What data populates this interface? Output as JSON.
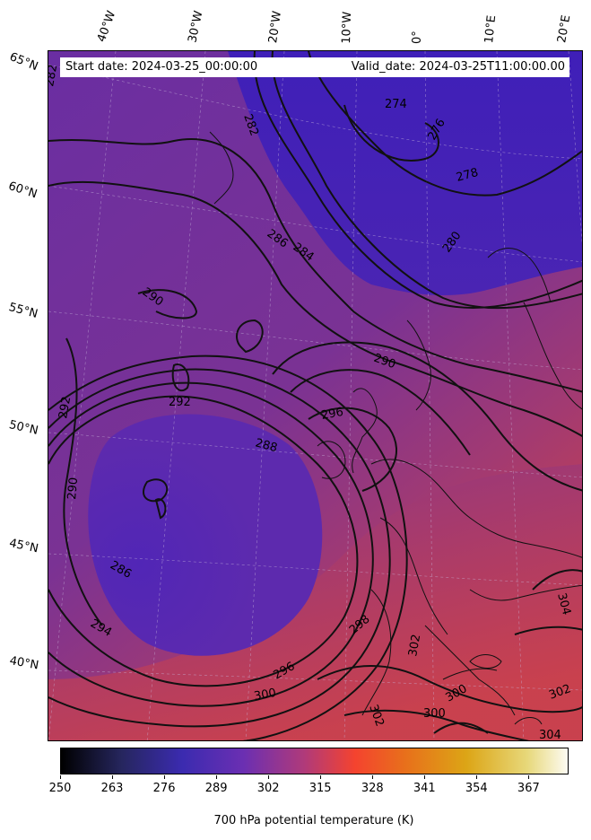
{
  "header": {
    "start_date": "Start date: 2024-03-25_00:00:00",
    "valid_date": "Valid_date: 2024-03-25T11:00:00.00"
  },
  "longitude_labels": [
    "40°W",
    "30°W",
    "20°W",
    "10°W",
    "0°",
    "10°E",
    "20°E"
  ],
  "latitude_labels": [
    "65°N",
    "60°N",
    "55°N",
    "50°N",
    "45°N",
    "40°N"
  ],
  "contour_labels": [
    "282",
    "282",
    "274",
    "276",
    "278",
    "280",
    "286",
    "284",
    "290",
    "290",
    "292",
    "292",
    "296",
    "288",
    "290",
    "286",
    "294",
    "298",
    "296",
    "300",
    "302",
    "300",
    "302",
    "300",
    "304",
    "302",
    "304"
  ],
  "colorbar": {
    "ticks": [
      "250",
      "263",
      "276",
      "289",
      "302",
      "315",
      "328",
      "341",
      "354",
      "367"
    ],
    "title": "700 hPa potential temperature (K)",
    "colormap": "CMRmap"
  },
  "colors": {
    "cold": "#3e1fb0",
    "mid": "#6a2fa0",
    "warm": "#c8404e"
  }
}
